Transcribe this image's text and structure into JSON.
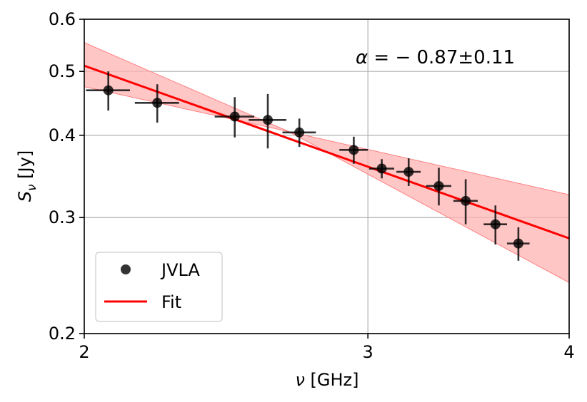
{
  "chart_data": {
    "type": "scatter",
    "xscale": "log",
    "yscale": "log",
    "xlim": [
      2,
      4
    ],
    "ylim": [
      0.2,
      0.6
    ],
    "x_ticks": [
      {
        "value": 2,
        "label": "2"
      },
      {
        "value": 3,
        "label": "3"
      },
      {
        "value": 4,
        "label": "4"
      }
    ],
    "y_ticks": [
      {
        "value": 0.2,
        "label": "0.2"
      },
      {
        "value": 0.3,
        "label": "0.3"
      },
      {
        "value": 0.4,
        "label": "0.4"
      },
      {
        "value": 0.5,
        "label": "0.5"
      },
      {
        "value": 0.6,
        "label": "0.6"
      }
    ],
    "grid": true,
    "xlabel_symbol": "ν",
    "xlabel_unit": " [GHz]",
    "ylabel_symbol": "S",
    "ylabel_sub": "ν",
    "ylabel_unit": " [Jy]",
    "annotation": {
      "symbol": "α",
      "text": " = − 0.87±0.11"
    },
    "colors": {
      "data": "#000000",
      "fit": "#ff0000",
      "band": "#ffb3b3",
      "band_edge": "#ff8080"
    },
    "series": [
      {
        "name": "JVLA",
        "kind": "errorbar",
        "points": [
          {
            "x": 2.07,
            "y": 0.468,
            "xerr": 0.065,
            "yerr": 0.032
          },
          {
            "x": 2.22,
            "y": 0.448,
            "xerr": 0.07,
            "yerr": 0.03
          },
          {
            "x": 2.48,
            "y": 0.427,
            "xerr": 0.07,
            "yerr": 0.03
          },
          {
            "x": 2.6,
            "y": 0.422,
            "xerr": 0.07,
            "yerr": 0.04
          },
          {
            "x": 2.72,
            "y": 0.404,
            "xerr": 0.065,
            "yerr": 0.02
          },
          {
            "x": 2.94,
            "y": 0.38,
            "xerr": 0.06,
            "yerr": 0.018
          },
          {
            "x": 3.06,
            "y": 0.356,
            "xerr": 0.055,
            "yerr": 0.012
          },
          {
            "x": 3.18,
            "y": 0.352,
            "xerr": 0.055,
            "yerr": 0.017
          },
          {
            "x": 3.32,
            "y": 0.335,
            "xerr": 0.06,
            "yerr": 0.022
          },
          {
            "x": 3.45,
            "y": 0.318,
            "xerr": 0.06,
            "yerr": 0.025
          },
          {
            "x": 3.6,
            "y": 0.293,
            "xerr": 0.06,
            "yerr": 0.02
          },
          {
            "x": 3.72,
            "y": 0.274,
            "xerr": 0.06,
            "yerr": 0.016
          }
        ]
      },
      {
        "name": "Fit",
        "kind": "line",
        "x": [
          2,
          4
        ],
        "y": [
          0.51,
          0.279
        ],
        "band": {
          "x": [
            2,
            2.68,
            4
          ],
          "lower": [
            0.474,
            0.405,
            0.239
          ],
          "upper": [
            0.553,
            0.405,
            0.325
          ]
        }
      }
    ],
    "legend": {
      "position": "lower-left",
      "entries": [
        {
          "label": "JVLA",
          "marker": "circle"
        },
        {
          "label": "Fit",
          "marker": "line"
        }
      ]
    }
  }
}
